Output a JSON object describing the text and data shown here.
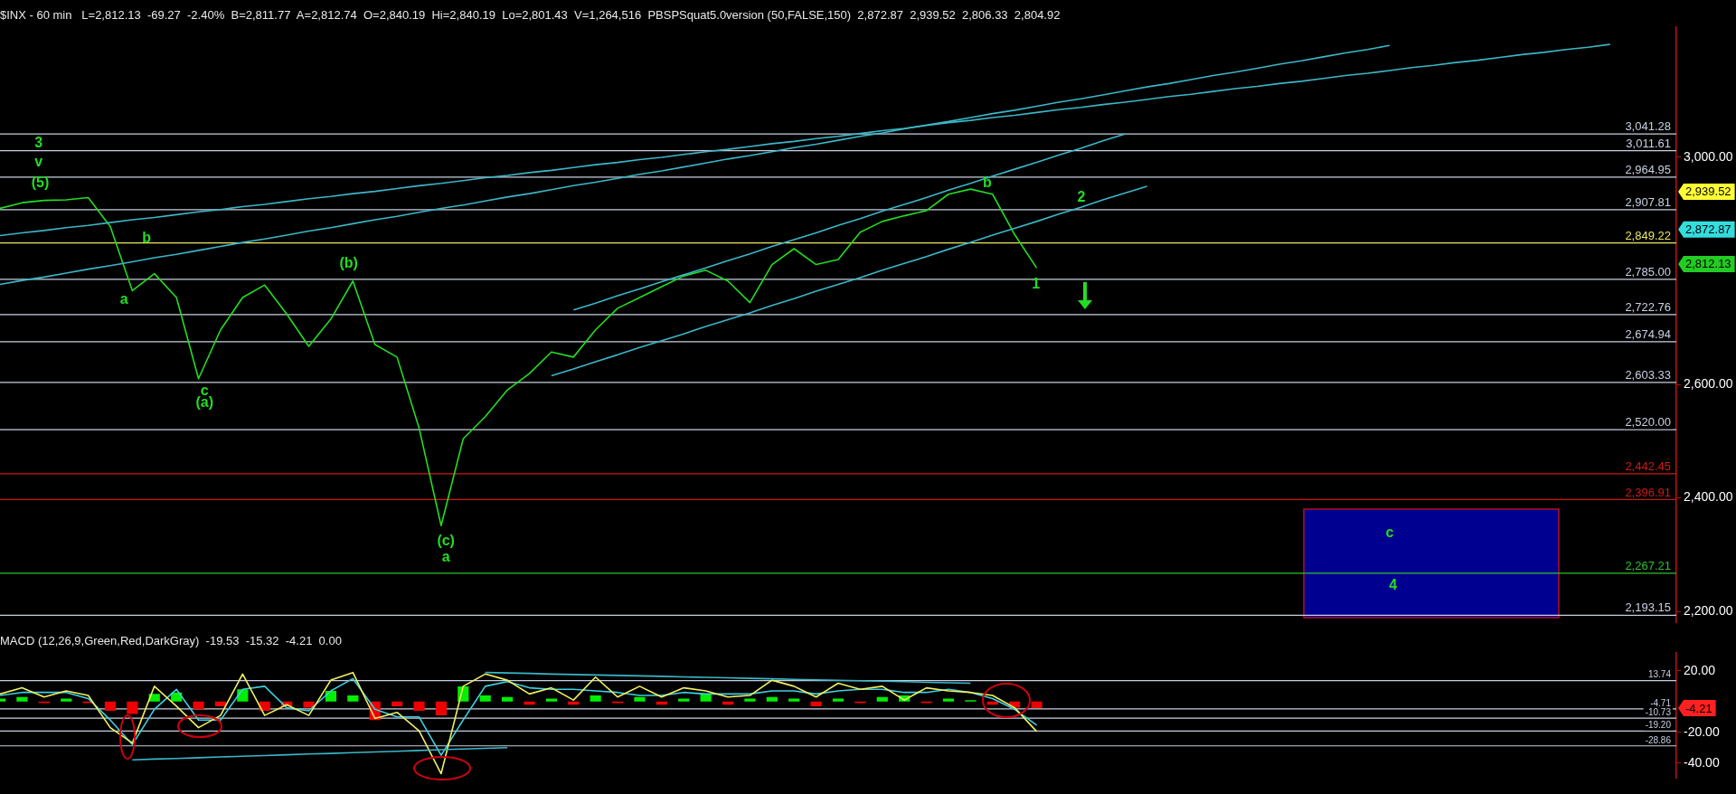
{
  "chart_data": [
    {
      "type": "line",
      "title": "$INX - 60 min   L=2,812.13  -69.27  -2.40%  B=2,811.77  A=2,812.74  O=2,840.19  Hi=2,840.19  Lo=2,801.43  V=1,264,516  PBSPSquat5.0version (50,FALSE,150)  2,872.87  2,939.52  2,806.33  2,804.92",
      "categories": [
        null,
        null,
        null,
        null,
        null,
        null,
        null,
        null,
        null,
        null,
        null,
        null,
        null,
        null,
        null,
        null,
        null,
        null,
        null,
        null,
        null,
        null,
        null,
        null,
        null,
        null,
        null,
        null,
        null,
        null,
        null,
        null,
        null,
        null,
        null,
        null,
        null,
        null,
        null,
        null,
        null,
        null,
        null,
        null,
        null,
        null,
        null,
        null,
        null,
        null,
        null,
        null,
        null,
        null,
        null,
        null,
        null,
        null,
        null,
        null,
        null,
        null,
        null,
        null,
        null,
        null,
        null,
        null,
        null,
        null,
        null,
        null,
        null,
        null,
        null,
        null,
        null
      ],
      "ylim": [
        2180,
        3230
      ],
      "yticks": [
        {
          "value": 2200,
          "label": "2,200.00"
        },
        {
          "value": 2400,
          "label": "2,400.00"
        },
        {
          "value": 2600,
          "label": "2,600.00"
        },
        {
          "value": 3000,
          "label": "3,000.00"
        }
      ],
      "tick_labels": "y",
      "legend": false,
      "grid": false,
      "series": [
        {
          "color": "#22dd22",
          "values": [
            2910,
            2920,
            2924,
            2925,
            2929,
            2878,
            2765,
            2795,
            2753,
            2610,
            2696,
            2753,
            2775,
            2724,
            2667,
            2715,
            2782,
            2670,
            2648,
            2523,
            2351,
            2504,
            2543,
            2590,
            2619,
            2657,
            2648,
            2696,
            2734,
            2753,
            2772,
            2791,
            2801,
            2782,
            2744,
            2811,
            2839,
            2811,
            2820,
            2868,
            2887,
            2897,
            2906,
            2935,
            2944,
            2935,
            2864,
            2805,
            null,
            null,
            null,
            null,
            null,
            null,
            null,
            null,
            null,
            null,
            null,
            null,
            null,
            null,
            null,
            null,
            null,
            null,
            null,
            null,
            null,
            null,
            null,
            null,
            null,
            null,
            null,
            null,
            null
          ]
        },
        {
          "color": "#3ab7c9",
          "values": [
            2776,
            2783,
            2789,
            2796,
            2803,
            2809,
            2816,
            2823,
            2829,
            2836,
            2843,
            2850,
            2856,
            2863,
            2870,
            2876,
            2883,
            2890,
            2896,
            2903,
            2910,
            2916,
            2923,
            2930,
            2936,
            2943,
            2950,
            2956,
            2963,
            2970,
            2976,
            2983,
            2990,
            2997,
            3003,
            3010,
            3017,
            3023,
            3030,
            3037,
            3043,
            3050,
            3057,
            3063,
            3070,
            3077,
            3083,
            3090,
            3097,
            3103,
            3110,
            3117,
            3124,
            3130,
            3137,
            3144,
            3150,
            3157,
            3164,
            3170,
            3177,
            3184,
            3190,
            3197,
            null,
            null,
            null,
            null,
            null,
            null,
            null,
            null,
            null,
            null,
            null,
            null,
            null
          ]
        },
        {
          "color": "#3ab7c9",
          "values": [
            2862,
            2867,
            2871,
            2876,
            2880,
            2885,
            2890,
            2894,
            2899,
            2904,
            2908,
            2913,
            2917,
            2922,
            2927,
            2931,
            2936,
            2940,
            2945,
            2950,
            2954,
            2959,
            2964,
            2968,
            2973,
            2977,
            2982,
            2987,
            2991,
            2996,
            3000,
            3005,
            3010,
            3014,
            3019,
            3024,
            3028,
            3033,
            3037,
            3042,
            3047,
            3051,
            3056,
            3061,
            3065,
            3070,
            3074,
            3079,
            3084,
            3088,
            3093,
            3097,
            3102,
            3107,
            3111,
            3116,
            3121,
            3125,
            3130,
            3134,
            3139,
            3144,
            3148,
            3153,
            3158,
            3162,
            3167,
            3171,
            3176,
            3181,
            3185,
            3190,
            3194,
            3199,
            null,
            null,
            null
          ]
        },
        {
          "color": "#3ab7c9",
          "values": [
            null,
            null,
            null,
            null,
            null,
            null,
            null,
            null,
            null,
            null,
            null,
            null,
            null,
            null,
            null,
            null,
            null,
            null,
            null,
            null,
            null,
            null,
            null,
            null,
            null,
            null,
            2731,
            2743,
            2756,
            2768,
            2781,
            2793,
            2805,
            2818,
            2830,
            2843,
            2855,
            2867,
            2880,
            2892,
            2905,
            2917,
            2929,
            2942,
            2954,
            2967,
            2979,
            2991,
            3004,
            3016,
            3029,
            3041,
            null,
            null,
            null,
            null,
            null,
            null,
            null,
            null,
            null,
            null,
            null,
            null,
            null,
            null,
            null,
            null,
            null,
            null,
            null,
            null,
            null,
            null,
            null,
            null,
            null
          ]
        },
        {
          "color": "#3ab7c9",
          "values": [
            null,
            null,
            null,
            null,
            null,
            null,
            null,
            null,
            null,
            null,
            null,
            null,
            null,
            null,
            null,
            null,
            null,
            null,
            null,
            null,
            null,
            null,
            null,
            null,
            null,
            2615,
            2627,
            2640,
            2652,
            2665,
            2677,
            2689,
            2702,
            2714,
            2726,
            2739,
            2751,
            2764,
            2776,
            2788,
            2801,
            2813,
            2825,
            2838,
            2850,
            2863,
            2875,
            2887,
            2900,
            2912,
            2925,
            2937,
            2949,
            null,
            null,
            null,
            null,
            null,
            null,
            null,
            null,
            null,
            null,
            null,
            null,
            null,
            null,
            null,
            null,
            null,
            null,
            null,
            null,
            null,
            null,
            null,
            null
          ]
        }
      ],
      "ref_lines": [
        {
          "axis": "y",
          "value": 3041.28,
          "label": "3,041.28",
          "color": "#c8d0e0"
        },
        {
          "axis": "y",
          "value": 3011.61,
          "label": "3,011.61",
          "color": "#c8d0e0"
        },
        {
          "axis": "y",
          "value": 2964.95,
          "label": "2,964.95",
          "color": "#c8d0e0"
        },
        {
          "axis": "y",
          "value": 2907.81,
          "label": "2,907.81",
          "color": "#c8d0e0"
        },
        {
          "axis": "y",
          "value": 2849.22,
          "label": "2,849.22",
          "color": "#e8e860"
        },
        {
          "axis": "y",
          "value": 2785.0,
          "label": "2,785.00",
          "color": "#c8d0e0"
        },
        {
          "axis": "y",
          "value": 2722.76,
          "label": "2,722.76",
          "color": "#c8d0e0"
        },
        {
          "axis": "y",
          "value": 2674.94,
          "label": "2,674.94",
          "color": "#c8d0e0"
        },
        {
          "axis": "y",
          "value": 2603.33,
          "label": "2,603.33",
          "color": "#c8d0e0"
        },
        {
          "axis": "y",
          "value": 2520.0,
          "label": "2,520.00",
          "color": "#c8d0e0"
        },
        {
          "axis": "y",
          "value": 2442.45,
          "label": "2,442.45",
          "color": "#d01818"
        },
        {
          "axis": "y",
          "value": 2396.91,
          "label": "2,396.91",
          "color": "#d01818"
        },
        {
          "axis": "y",
          "value": 2267.21,
          "label": "2,267.21",
          "color": "#30c030"
        },
        {
          "axis": "y",
          "value": 2193.15,
          "label": "2,193.15",
          "color": "#c8d0e0"
        }
      ],
      "annotations": [
        "3",
        "v",
        "(5)",
        "b",
        "a",
        "c",
        "(a)",
        "(b)",
        "(c)",
        "a",
        "b",
        "1",
        "2",
        "c",
        "4",
        "2,939.52",
        "2,872.87",
        "2,812.13"
      ]
    },
    {
      "type": "line",
      "title": "MACD (12,26,9,Green,Red,DarkGray)  -19.53  -15.32  -4.21  0.00",
      "categories": [
        null,
        null,
        null,
        null,
        null,
        null,
        null,
        null,
        null,
        null,
        null,
        null,
        null,
        null,
        null,
        null,
        null,
        null,
        null,
        null,
        null,
        null,
        null,
        null,
        null,
        null,
        null,
        null,
        null,
        null,
        null,
        null,
        null,
        null,
        null,
        null,
        null,
        null,
        null,
        null,
        null,
        null,
        null,
        null,
        null,
        null,
        null,
        null,
        null,
        null,
        null,
        null,
        null,
        null,
        null,
        null,
        null,
        null,
        null,
        null,
        null,
        null,
        null,
        null,
        null,
        null,
        null,
        null,
        null,
        null,
        null,
        null,
        null,
        null,
        null,
        null,
        null
      ],
      "ylim": [
        -50,
        32
      ],
      "yticks": [
        {
          "value": 20,
          "label": "20.00"
        },
        {
          "value": -20,
          "label": "-20.00"
        },
        {
          "value": -40,
          "label": "-40.00"
        }
      ],
      "tick_labels": "y",
      "legend": false,
      "grid": false,
      "series": [
        {
          "type": "bar",
          "values": [
            2,
            3,
            -1,
            2,
            -1,
            -6,
            -8,
            5,
            6,
            -5,
            -3,
            8,
            -6,
            -3,
            -4,
            7,
            4,
            -12,
            -3,
            -6,
            -9,
            10,
            4,
            3,
            -2,
            2,
            -2,
            4,
            -1,
            3,
            -2,
            2,
            5,
            -2,
            2,
            3,
            2,
            -3,
            2,
            -1,
            3,
            4,
            -1,
            2,
            1,
            -2,
            -4,
            -4.21,
            null,
            null,
            null,
            null,
            null,
            null,
            null,
            null,
            null,
            null,
            null,
            null,
            null,
            null,
            null,
            null,
            null,
            null,
            null,
            null,
            null,
            null,
            null,
            null,
            null,
            null,
            null,
            null,
            null
          ],
          "colors": [
            "#00ee00",
            "#00ee00",
            "#ee0000",
            "#00ee00",
            "#ee0000",
            "#ee0000",
            "#ee0000",
            "#00ee00",
            "#00ee00",
            "#ee0000",
            "#ee0000",
            "#00ee00",
            "#ee0000",
            "#ee0000",
            "#ee0000",
            "#00ee00",
            "#00ee00",
            "#ee0000",
            "#ee0000",
            "#ee0000",
            "#ee0000",
            "#00ee00",
            "#00ee00",
            "#00ee00",
            "#ee0000",
            "#00ee00",
            "#ee0000",
            "#00ee00",
            "#ee0000",
            "#00ee00",
            "#ee0000",
            "#00ee00",
            "#00ee00",
            "#ee0000",
            "#00ee00",
            "#00ee00",
            "#00ee00",
            "#ee0000",
            "#00ee00",
            "#ee0000",
            "#00ee00",
            "#00ee00",
            "#ee0000",
            "#00ee00",
            "#00ee00",
            "#ee0000",
            "#ee0000",
            "#ee0000",
            null,
            null,
            null,
            null,
            null,
            null,
            null,
            null,
            null,
            null,
            null,
            null,
            null,
            null,
            null,
            null,
            null,
            null,
            null,
            null,
            null,
            null,
            null,
            null,
            null,
            null,
            null,
            null,
            null
          ]
        },
        {
          "color": "#3fd0e0",
          "values": [
            4,
            6,
            6,
            6,
            2,
            -12,
            -28,
            -5,
            8,
            -12,
            -12,
            8,
            10,
            -4,
            -6,
            7,
            15,
            -5,
            -10,
            -10,
            -35,
            -12,
            10,
            13,
            9,
            8,
            8,
            7,
            6,
            4,
            4,
            6,
            5,
            5,
            5,
            7,
            7,
            5,
            7,
            8,
            8,
            6,
            6,
            8,
            6,
            2,
            -5,
            -15.3,
            null,
            null,
            null,
            null,
            null,
            null,
            null,
            null,
            null,
            null,
            null,
            null,
            null,
            null,
            null,
            null,
            null,
            null,
            null,
            null,
            null,
            null,
            null,
            null,
            null,
            null,
            null,
            null,
            null
          ]
        },
        {
          "color": "#f0f060",
          "values": [
            5,
            9,
            3,
            7,
            4,
            -17,
            -27,
            10,
            -3,
            -17,
            -9,
            18,
            -9,
            -2,
            -9,
            14,
            19,
            -11,
            -7,
            -19,
            -47,
            10,
            18,
            14,
            5,
            9,
            1,
            16,
            3,
            10,
            3,
            9,
            7,
            3,
            4,
            14,
            10,
            3,
            12,
            8,
            10,
            1,
            9,
            7,
            6,
            4,
            -4,
            -19.5,
            null,
            null,
            null,
            null,
            null,
            null,
            null,
            null,
            null,
            null,
            null,
            null,
            null,
            null,
            null,
            null,
            null,
            null,
            null,
            null,
            null,
            null,
            null,
            null,
            null,
            null,
            null,
            null,
            null
          ]
        },
        {
          "color": "#3ab7c9",
          "values": [
            null,
            null,
            null,
            null,
            null,
            null,
            null,
            null,
            null,
            null,
            null,
            null,
            null,
            null,
            null,
            null,
            null,
            null,
            null,
            null,
            null,
            null,
            19,
            18.7,
            18.4,
            18,
            17.7,
            17.4,
            17.1,
            16.8,
            16.5,
            16.1,
            15.8,
            15.5,
            15.2,
            14.9,
            14.5,
            14.2,
            13.9,
            13.6,
            13.3,
            13,
            12.6,
            12.3,
            12,
            null,
            null,
            null,
            null,
            null,
            null,
            null,
            null,
            null,
            null,
            null,
            null,
            null,
            null,
            null,
            null,
            null,
            null,
            null,
            null,
            null,
            null,
            null,
            null,
            null,
            null,
            null,
            null,
            null,
            null,
            null,
            null
          ]
        },
        {
          "color": "#3ab7c9",
          "values": [
            null,
            null,
            null,
            null,
            null,
            null,
            -38,
            -37.5,
            -37.1,
            -36.6,
            -36.1,
            -35.6,
            -35.2,
            -34.7,
            -34.2,
            -33.8,
            -33.3,
            -32.8,
            -32.4,
            -31.9,
            -31.4,
            -30.9,
            -30.5,
            -30,
            null,
            null,
            null,
            null,
            null,
            null,
            null,
            null,
            null,
            null,
            null,
            null,
            null,
            null,
            null,
            null,
            null,
            null,
            null,
            null,
            null,
            null,
            null,
            null,
            null,
            null,
            null,
            null,
            null,
            null,
            null,
            null,
            null,
            null,
            null,
            null,
            null,
            null,
            null,
            null,
            null,
            null,
            null,
            null,
            null,
            null,
            null,
            null,
            null,
            null,
            null,
            null,
            null
          ]
        }
      ],
      "ref_lines": [
        {
          "axis": "y",
          "value": 13.74,
          "label": "13.74",
          "color": "#c8d0e0"
        },
        {
          "axis": "y",
          "value": -4.71,
          "label": "-4.71",
          "color": "#c8d0e0"
        },
        {
          "axis": "y",
          "value": -10.73,
          "label": "-10.73",
          "color": "#c8d0e0"
        },
        {
          "axis": "y",
          "value": -19.2,
          "label": "-19.20",
          "color": "#c8d0e0"
        },
        {
          "axis": "y",
          "value": -28.86,
          "label": "-28.86",
          "color": "#c8d0e0"
        }
      ],
      "annotations": [
        "-4.21"
      ]
    }
  ]
}
